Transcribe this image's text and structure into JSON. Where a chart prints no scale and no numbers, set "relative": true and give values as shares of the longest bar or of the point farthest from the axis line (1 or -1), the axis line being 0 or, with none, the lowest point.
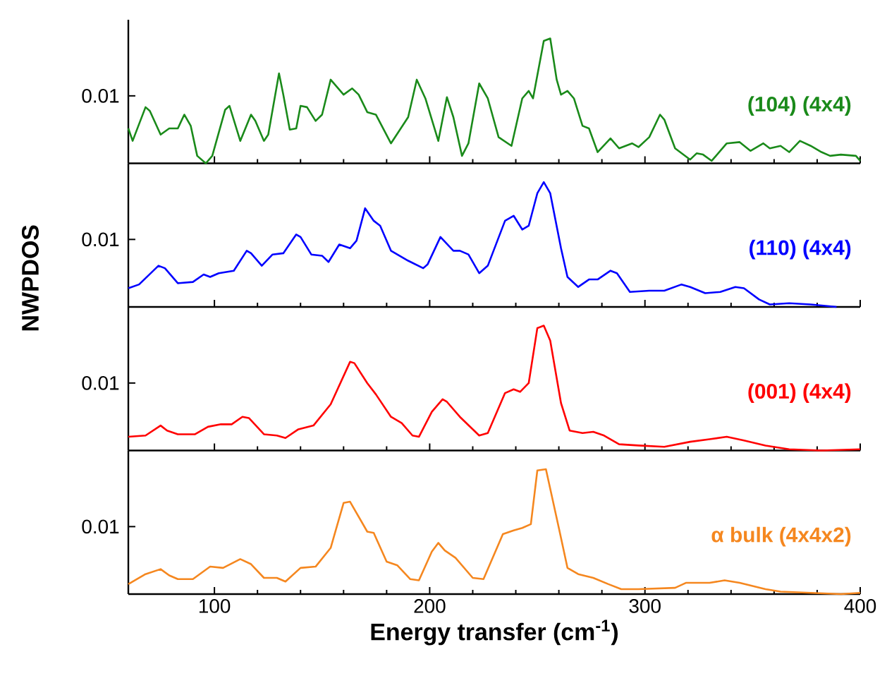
{
  "chart_data": [
    {
      "type": "line",
      "relative": true,
      "x": [
        60,
        62,
        68,
        70,
        75,
        79,
        83,
        86,
        89,
        92,
        96,
        99,
        105,
        107,
        112,
        117,
        119,
        123,
        125,
        130,
        132,
        135,
        138,
        140,
        143,
        147,
        150,
        154,
        160,
        164,
        167,
        171,
        175,
        182,
        190,
        194,
        198,
        204,
        208,
        211,
        215,
        218,
        223,
        227,
        232,
        238,
        243,
        246,
        248,
        253,
        256,
        259,
        261,
        264,
        267,
        271,
        274,
        278,
        284,
        288,
        294,
        297,
        302,
        307,
        309,
        314,
        321,
        324,
        327,
        331,
        338,
        344,
        349,
        355,
        358,
        363,
        367,
        372,
        377,
        382,
        386,
        391,
        398,
        400
      ],
      "series": [
        {
          "name": "(104) (4x4)",
          "color": "#1a8a1a",
          "values": [
            0.28,
            0.18,
            0.45,
            0.42,
            0.23,
            0.28,
            0.28,
            0.39,
            0.3,
            0.06,
            0,
            0.06,
            0.43,
            0.46,
            0.18,
            0.39,
            0.34,
            0.18,
            0.23,
            0.72,
            0.55,
            0.27,
            0.28,
            0.46,
            0.45,
            0.34,
            0.39,
            0.67,
            0.55,
            0.6,
            0.55,
            0.41,
            0.39,
            0.16,
            0.37,
            0.67,
            0.52,
            0.18,
            0.53,
            0.37,
            0.06,
            0.16,
            0.64,
            0.52,
            0.21,
            0.14,
            0.52,
            0.58,
            0.52,
            0.98,
            1,
            0.67,
            0.55,
            0.58,
            0.52,
            0.3,
            0.28,
            0.09,
            0.2,
            0.12,
            0.16,
            0.13,
            0.21,
            0.39,
            0.35,
            0.12,
            0.03,
            0.08,
            0.07,
            0.02,
            0.16,
            0.17,
            0.1,
            0.16,
            0.12,
            0.14,
            0.09,
            0.18,
            0.14,
            0.09,
            0.06,
            0.07,
            0.06,
            0.02
          ]
        }
      ],
      "xlim": [
        60,
        400
      ],
      "xticks": [
        100,
        200,
        300,
        400
      ],
      "annotations": [
        "0.01"
      ],
      "tick_labels": false
    },
    {
      "type": "line",
      "relative": true,
      "x": [
        60,
        65,
        74,
        77,
        83,
        90,
        95,
        98,
        102,
        109,
        115,
        117,
        122,
        127,
        132,
        138,
        140,
        145,
        150,
        153,
        158,
        163,
        166,
        170,
        174,
        177,
        182,
        190,
        197,
        199,
        205,
        211,
        214,
        218,
        223,
        227,
        235,
        239,
        243,
        246,
        250,
        253,
        256,
        261,
        264,
        269,
        274,
        278,
        284,
        287,
        293,
        302,
        309,
        317,
        321,
        328,
        335,
        342,
        346,
        353,
        358,
        367,
        377,
        389
      ],
      "ylabel": "NWPDOS",
      "series": [
        {
          "name": "(110) (4x4)",
          "color": "#0000ff",
          "values": [
            0.15,
            0.18,
            0.33,
            0.31,
            0.19,
            0.2,
            0.26,
            0.24,
            0.27,
            0.29,
            0.45,
            0.43,
            0.33,
            0.42,
            0.43,
            0.58,
            0.56,
            0.42,
            0.41,
            0.36,
            0.5,
            0.47,
            0.53,
            0.79,
            0.69,
            0.65,
            0.45,
            0.37,
            0.31,
            0.34,
            0.56,
            0.45,
            0.45,
            0.42,
            0.27,
            0.33,
            0.69,
            0.73,
            0.62,
            0.65,
            0.91,
            1,
            0.91,
            0.47,
            0.24,
            0.16,
            0.22,
            0.22,
            0.29,
            0.27,
            0.12,
            0.13,
            0.13,
            0.18,
            0.16,
            0.11,
            0.12,
            0.16,
            0.15,
            0.06,
            0.02,
            0.03,
            0.02,
            0
          ]
        }
      ],
      "xlim": [
        60,
        400
      ],
      "xticks": [
        100,
        200,
        300,
        400
      ],
      "annotations": [
        "0.01"
      ],
      "tick_labels": false
    },
    {
      "type": "line",
      "relative": true,
      "x": [
        60,
        68,
        75,
        78,
        83,
        91,
        97,
        103,
        108,
        113,
        116,
        123,
        129,
        133,
        139,
        146,
        154,
        163,
        165,
        171,
        175,
        182,
        187,
        192,
        195,
        201,
        206,
        208,
        214,
        223,
        227,
        235,
        239,
        242,
        246,
        250,
        253,
        256,
        261,
        265,
        271,
        276,
        281,
        288,
        297,
        309,
        321,
        330,
        338,
        346,
        356,
        367,
        382,
        400
      ],
      "series": [
        {
          "name": "(001) (4x4)",
          "color": "#ff0000",
          "values": [
            0.11,
            0.12,
            0.2,
            0.16,
            0.13,
            0.13,
            0.19,
            0.21,
            0.21,
            0.27,
            0.26,
            0.13,
            0.12,
            0.1,
            0.17,
            0.2,
            0.37,
            0.71,
            0.7,
            0.54,
            0.45,
            0.27,
            0.22,
            0.12,
            0.11,
            0.31,
            0.41,
            0.39,
            0.27,
            0.12,
            0.14,
            0.46,
            0.49,
            0.47,
            0.54,
            0.98,
            1,
            0.88,
            0.38,
            0.16,
            0.14,
            0.15,
            0.12,
            0.05,
            0.04,
            0.03,
            0.07,
            0.09,
            0.11,
            0.08,
            0.04,
            0.01,
            0,
            0.01
          ]
        }
      ],
      "xlim": [
        60,
        400
      ],
      "xticks": [
        100,
        200,
        300,
        400
      ],
      "annotations": [
        "0.01"
      ],
      "tick_labels": false
    },
    {
      "type": "line",
      "relative": true,
      "x": [
        60,
        68,
        75,
        79,
        83,
        90,
        98,
        104,
        112,
        117,
        123,
        129,
        133,
        140,
        147,
        154,
        160,
        163,
        171,
        174,
        180,
        185,
        191,
        195,
        201,
        204,
        207,
        212,
        220,
        225,
        234,
        239,
        243,
        247,
        250,
        254,
        260,
        264,
        269,
        276,
        283,
        289,
        297,
        314,
        319,
        330,
        337,
        344,
        356,
        363,
        377,
        391,
        400
      ],
      "series": [
        {
          "name": "α bulk (4x4x2)",
          "color": "#f5871f",
          "values": [
            0.08,
            0.16,
            0.2,
            0.15,
            0.12,
            0.12,
            0.22,
            0.21,
            0.28,
            0.24,
            0.13,
            0.13,
            0.1,
            0.21,
            0.22,
            0.37,
            0.73,
            0.74,
            0.5,
            0.49,
            0.26,
            0.23,
            0.12,
            0.11,
            0.34,
            0.41,
            0.35,
            0.29,
            0.13,
            0.12,
            0.48,
            0.51,
            0.53,
            0.56,
            0.99,
            1,
            0.53,
            0.21,
            0.16,
            0.13,
            0.08,
            0.04,
            0.04,
            0.05,
            0.09,
            0.09,
            0.11,
            0.09,
            0.04,
            0.02,
            0.01,
            0,
            0.01
          ]
        }
      ],
      "xlim": [
        60,
        400
      ],
      "xticks": [
        100,
        200,
        300,
        400
      ],
      "xlabel": "Energy transfer (cm$^{-1}$)",
      "annotations": [
        "0.01"
      ],
      "tick_labels": "x"
    }
  ]
}
